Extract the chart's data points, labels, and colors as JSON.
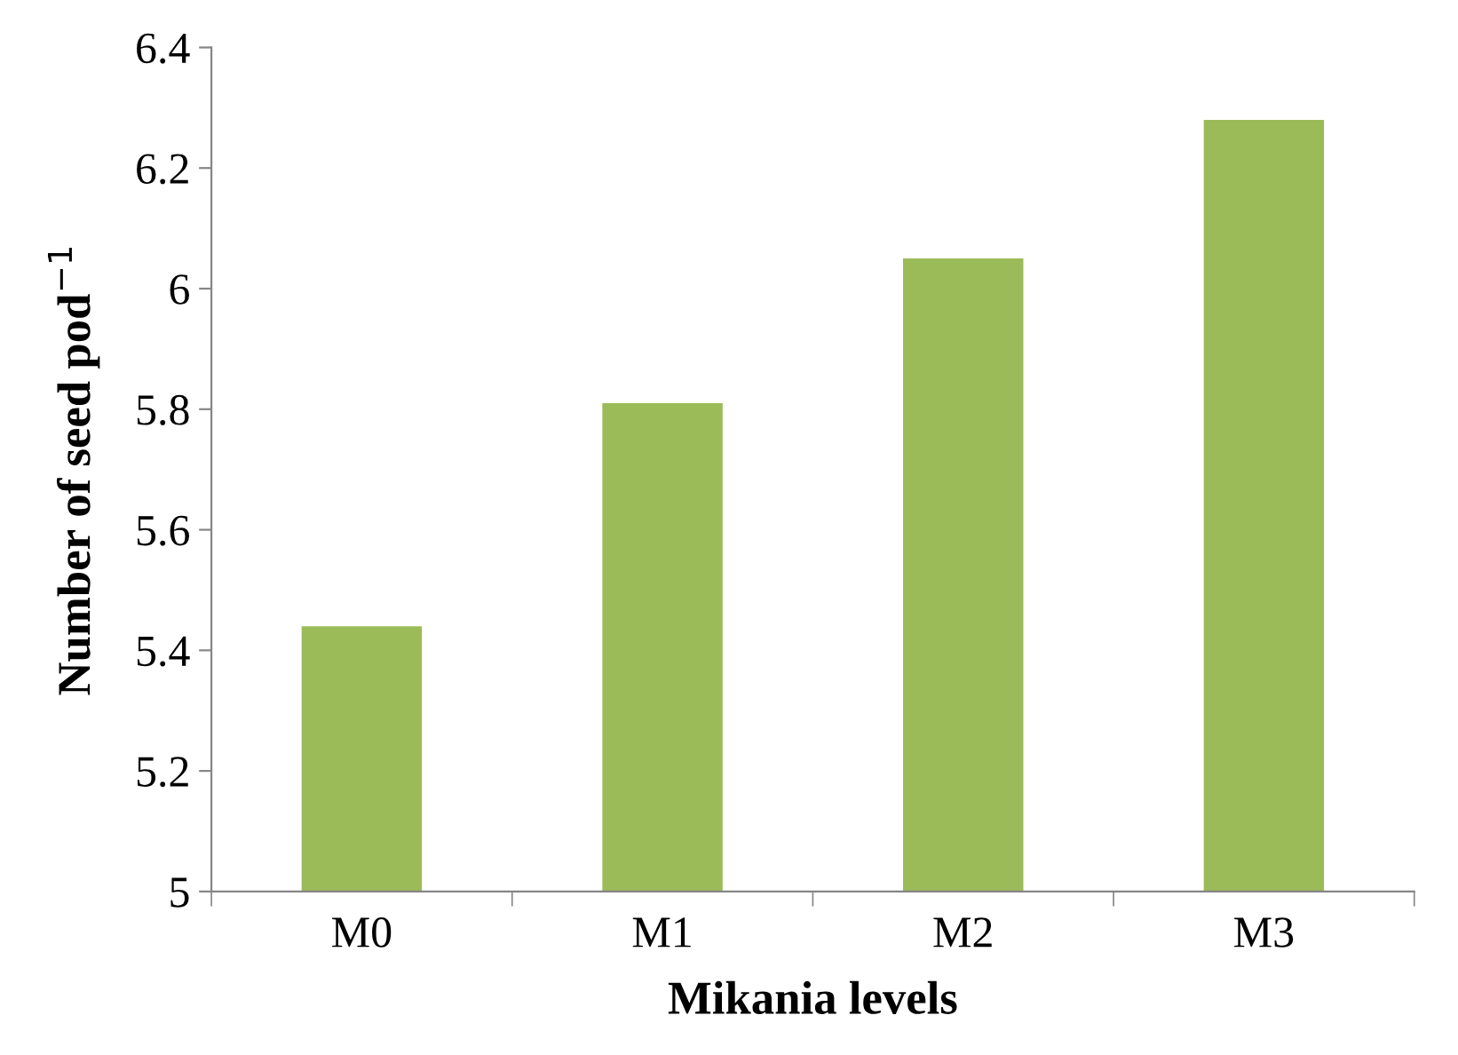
{
  "chart_data": {
    "type": "bar",
    "xlabel": "Mikania levels",
    "ylabel": "Number of seed pod$^{−1}$",
    "categories": [
      "M0",
      "M1",
      "M2",
      "M3"
    ],
    "values": [
      5.44,
      5.81,
      6.05,
      6.28
    ],
    "color": "#9bbb59",
    "ylim": [
      5,
      6.4
    ],
    "yticks": [
      5,
      5.2,
      5.4,
      5.6,
      5.8,
      6,
      6.2,
      6.4
    ],
    "grid": false,
    "legend": false
  }
}
